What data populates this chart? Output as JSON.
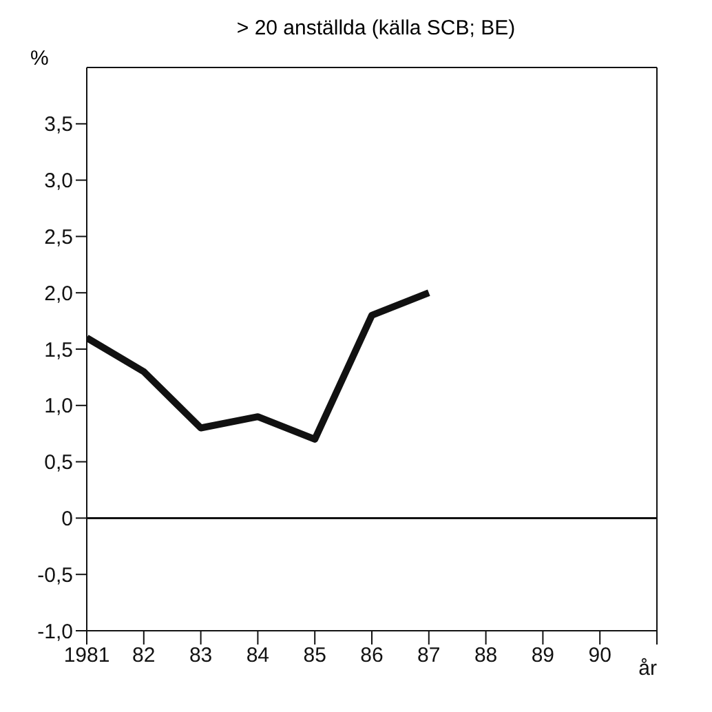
{
  "chart_data": {
    "type": "line",
    "subtitle": "> 20 anställda (källa SCB; BE)",
    "ylabel": "%",
    "xlabel": "år",
    "x": [
      1981,
      1982,
      1983,
      1984,
      1985,
      1986,
      1987
    ],
    "series": [
      {
        "color": "#111111",
        "values": [
          1.6,
          1.3,
          0.8,
          0.9,
          0.7,
          1.8,
          2.0
        ]
      }
    ],
    "xlim": [
      1981,
      1991
    ],
    "xticks": [
      1981,
      {
        "value": 1982,
        "label": "82"
      },
      {
        "value": 1983,
        "label": "83"
      },
      {
        "value": 1984,
        "label": "84"
      },
      {
        "value": 1985,
        "label": "85"
      },
      {
        "value": 1986,
        "label": "86"
      },
      {
        "value": 1987,
        "label": "87"
      },
      {
        "value": 1988,
        "label": "88"
      },
      {
        "value": 1989,
        "label": "89"
      },
      {
        "value": 1990,
        "label": "90"
      },
      {
        "value": 1991,
        "label": null
      }
    ],
    "ylim": [
      -1,
      4
    ],
    "yticks": [
      {
        "value": -1,
        "label": "-1,0"
      },
      {
        "value": -0.5,
        "label": "-0,5"
      },
      0,
      {
        "value": 0.5,
        "label": "0,5"
      },
      {
        "value": 1,
        "label": "1,0"
      },
      {
        "value": 1.5,
        "label": "1,5"
      },
      {
        "value": 2,
        "label": "2,0"
      },
      {
        "value": 2.5,
        "label": "2,5"
      },
      {
        "value": 3,
        "label": "3,0"
      },
      {
        "value": 3.5,
        "label": "3,5"
      }
    ],
    "ref_lines": [
      {
        "axis": "y",
        "value": 0,
        "color": "#111111"
      }
    ],
    "grid": false,
    "legend": false,
    "marker": "none",
    "line_style": "solid"
  }
}
